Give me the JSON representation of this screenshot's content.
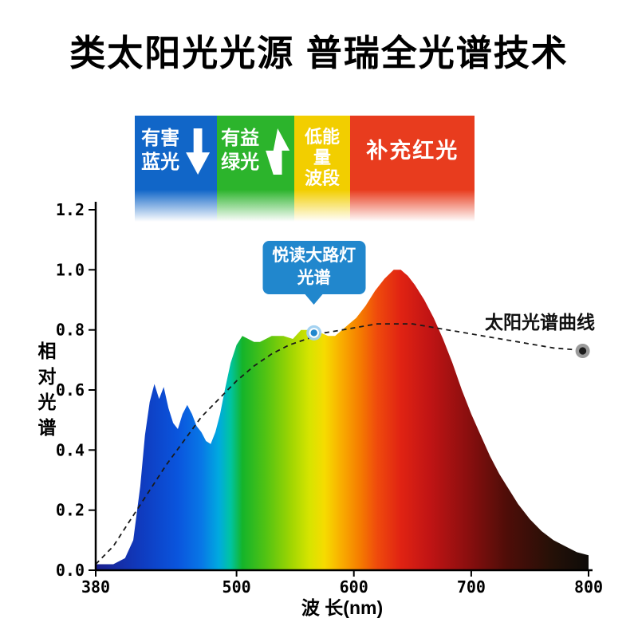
{
  "title": "类太阳光光源 普瑞全光谱技术",
  "colors": {
    "band_blue": "#1166c8",
    "band_green": "#2cb42c",
    "band_yellow": "#f2ce00",
    "band_red": "#e83c1e",
    "callout_blue": "#2187cd",
    "axis": "#000000",
    "solar_curve": "#1a1a1a",
    "solar_dot_outer": "#9a9a9a",
    "solar_dot_inner": "#1c1c1c"
  },
  "bands": [
    {
      "name": "harmful-blue",
      "lines": [
        "有害",
        "蓝光"
      ],
      "arrow": "down",
      "color": "#1166c8",
      "range_nm": [
        413,
        483
      ]
    },
    {
      "name": "beneficial-green",
      "lines": [
        "有益",
        "绿光"
      ],
      "arrow": "up",
      "color": "#2cb42c",
      "range_nm": [
        483,
        549
      ]
    },
    {
      "name": "low-energy-segment",
      "lines": [
        "低能",
        "量",
        "波段"
      ],
      "arrow": "",
      "color": "#f2ce00",
      "range_nm": [
        549,
        597
      ]
    },
    {
      "name": "supplement-red",
      "lines": [
        "补充红光"
      ],
      "arrow": "",
      "color": "#e83c1e",
      "range_nm": [
        597,
        703
      ]
    }
  ],
  "callout": {
    "lines": [
      "悦读大路灯",
      "光谱"
    ],
    "point_nm": 566,
    "point_value": 0.79
  },
  "solar_label": "太阳光谱曲线",
  "solar_end_point": {
    "nm": 795,
    "value": 0.73
  },
  "chart_data": {
    "type": "area",
    "title": "类太阳光光源 普瑞全光谱技术",
    "xlabel": "波 长(nm)",
    "ylabel": "相对光谱",
    "xlim": [
      380,
      800
    ],
    "ylim": [
      0,
      1.2
    ],
    "grid": false,
    "x_ticks": [
      {
        "v": 380,
        "label": "380"
      },
      {
        "v": 500,
        "label": "500"
      },
      {
        "v": 600,
        "label": "600"
      },
      {
        "v": 700,
        "label": "700"
      },
      {
        "v": 800,
        "label": "800"
      }
    ],
    "y_ticks": [
      {
        "v": 0.0,
        "label": "0.0"
      },
      {
        "v": 0.2,
        "label": "0.2"
      },
      {
        "v": 0.4,
        "label": "0.4"
      },
      {
        "v": 0.6,
        "label": "0.6"
      },
      {
        "v": 0.8,
        "label": "0.8"
      },
      {
        "v": 1.0,
        "label": "1.0"
      },
      {
        "v": 1.2,
        "label": "1.2"
      }
    ],
    "series": [
      {
        "name": "悦读大路灯光谱",
        "type": "area",
        "fill": "spectrum-gradient",
        "points": [
          [
            380,
            0.02
          ],
          [
            395,
            0.02
          ],
          [
            405,
            0.04
          ],
          [
            412,
            0.1
          ],
          [
            418,
            0.28
          ],
          [
            422,
            0.45
          ],
          [
            426,
            0.56
          ],
          [
            430,
            0.62
          ],
          [
            434,
            0.57
          ],
          [
            438,
            0.61
          ],
          [
            442,
            0.54
          ],
          [
            446,
            0.49
          ],
          [
            450,
            0.47
          ],
          [
            454,
            0.52
          ],
          [
            458,
            0.55
          ],
          [
            462,
            0.52
          ],
          [
            466,
            0.48
          ],
          [
            470,
            0.46
          ],
          [
            474,
            0.43
          ],
          [
            478,
            0.42
          ],
          [
            482,
            0.46
          ],
          [
            486,
            0.52
          ],
          [
            490,
            0.6
          ],
          [
            495,
            0.69
          ],
          [
            500,
            0.75
          ],
          [
            505,
            0.78
          ],
          [
            510,
            0.77
          ],
          [
            515,
            0.76
          ],
          [
            520,
            0.76
          ],
          [
            530,
            0.78
          ],
          [
            540,
            0.78
          ],
          [
            548,
            0.77
          ],
          [
            555,
            0.8
          ],
          [
            560,
            0.8
          ],
          [
            566,
            0.79
          ],
          [
            572,
            0.79
          ],
          [
            578,
            0.78
          ],
          [
            584,
            0.78
          ],
          [
            590,
            0.8
          ],
          [
            596,
            0.82
          ],
          [
            602,
            0.84
          ],
          [
            610,
            0.88
          ],
          [
            618,
            0.93
          ],
          [
            626,
            0.97
          ],
          [
            634,
            1.0
          ],
          [
            640,
            1.0
          ],
          [
            646,
            0.98
          ],
          [
            652,
            0.95
          ],
          [
            660,
            0.9
          ],
          [
            668,
            0.84
          ],
          [
            676,
            0.77
          ],
          [
            684,
            0.69
          ],
          [
            692,
            0.6
          ],
          [
            700,
            0.52
          ],
          [
            708,
            0.45
          ],
          [
            716,
            0.38
          ],
          [
            724,
            0.32
          ],
          [
            732,
            0.27
          ],
          [
            740,
            0.22
          ],
          [
            750,
            0.17
          ],
          [
            760,
            0.13
          ],
          [
            770,
            0.1
          ],
          [
            780,
            0.08
          ],
          [
            790,
            0.06
          ],
          [
            800,
            0.05
          ]
        ]
      },
      {
        "name": "太阳光谱曲线",
        "type": "line",
        "style": "dashed",
        "color": "#1a1a1a",
        "points": [
          [
            380,
            0.02
          ],
          [
            395,
            0.08
          ],
          [
            410,
            0.17
          ],
          [
            425,
            0.26
          ],
          [
            440,
            0.35
          ],
          [
            455,
            0.43
          ],
          [
            470,
            0.51
          ],
          [
            485,
            0.57
          ],
          [
            500,
            0.63
          ],
          [
            515,
            0.68
          ],
          [
            530,
            0.72
          ],
          [
            545,
            0.75
          ],
          [
            560,
            0.77
          ],
          [
            575,
            0.79
          ],
          [
            590,
            0.8
          ],
          [
            605,
            0.81
          ],
          [
            620,
            0.82
          ],
          [
            635,
            0.82
          ],
          [
            650,
            0.82
          ],
          [
            665,
            0.81
          ],
          [
            680,
            0.8
          ],
          [
            695,
            0.79
          ],
          [
            710,
            0.78
          ],
          [
            725,
            0.77
          ],
          [
            740,
            0.76
          ],
          [
            755,
            0.75
          ],
          [
            770,
            0.74
          ],
          [
            785,
            0.735
          ],
          [
            795,
            0.73
          ]
        ]
      }
    ],
    "spectrum_gradient": [
      {
        "nm": 380,
        "color": "#1b1f8e"
      },
      {
        "nm": 420,
        "color": "#0f3cc0"
      },
      {
        "nm": 450,
        "color": "#0a55dd"
      },
      {
        "nm": 470,
        "color": "#0877e6"
      },
      {
        "nm": 485,
        "color": "#00aadf"
      },
      {
        "nm": 495,
        "color": "#00c4a0"
      },
      {
        "nm": 505,
        "color": "#14b42a"
      },
      {
        "nm": 525,
        "color": "#52c313"
      },
      {
        "nm": 545,
        "color": "#9ad403"
      },
      {
        "nm": 562,
        "color": "#d6e400"
      },
      {
        "nm": 575,
        "color": "#f6dc00"
      },
      {
        "nm": 590,
        "color": "#f9ab00"
      },
      {
        "nm": 605,
        "color": "#f57d00"
      },
      {
        "nm": 620,
        "color": "#ef4a0c"
      },
      {
        "nm": 640,
        "color": "#e02313"
      },
      {
        "nm": 665,
        "color": "#c01414"
      },
      {
        "nm": 695,
        "color": "#8e0f0f"
      },
      {
        "nm": 730,
        "color": "#4f0d08"
      },
      {
        "nm": 770,
        "color": "#241007"
      },
      {
        "nm": 800,
        "color": "#0e0c09"
      }
    ]
  }
}
